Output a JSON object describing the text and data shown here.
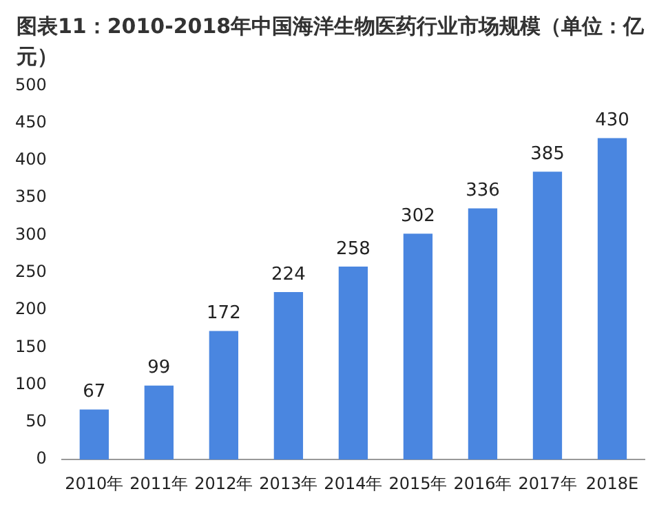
{
  "chart_data": {
    "type": "bar",
    "title": "图表11：2010-2018年中国海洋生物医药行业市场规模（单位：亿元）",
    "categories": [
      "2010年",
      "2011年",
      "2012年",
      "2013年",
      "2014年",
      "2015年",
      "2016年",
      "2017年",
      "2018E"
    ],
    "values": [
      67,
      99,
      172,
      224,
      258,
      302,
      336,
      385,
      430
    ],
    "color": "#4a86e0",
    "ylim": [
      0,
      500
    ],
    "yticks": [
      0,
      50,
      100,
      150,
      200,
      250,
      300,
      350,
      400,
      450,
      500
    ],
    "data_labels": true,
    "grid": false,
    "legend": false
  }
}
